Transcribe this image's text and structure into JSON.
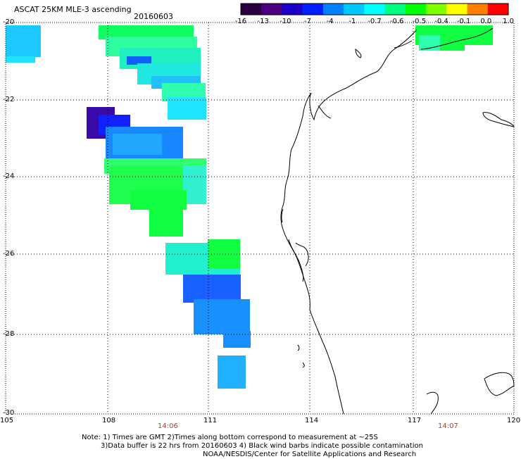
{
  "header": {
    "title": "ASCAT 25KM MLE-3 ascending",
    "date": "20160603"
  },
  "colorbar": {
    "labels": [
      "-16",
      "-13",
      "-10",
      "-7",
      "-4",
      "-1",
      "-0.7",
      "-0.6",
      "-0.5",
      "-0.4",
      "-0.1",
      "0.0",
      "1.0"
    ],
    "colors": [
      "#2b0040",
      "#4b0082",
      "#1a00c8",
      "#0020ff",
      "#0080ff",
      "#00c8ff",
      "#00ffff",
      "#00ff80",
      "#00ff00",
      "#80ff00",
      "#ffff00",
      "#ff8000",
      "#ff0000"
    ]
  },
  "axes": {
    "lat_labels": [
      "-20",
      "-22",
      "-24",
      "-26",
      "-28",
      "-30"
    ],
    "lon_labels": [
      "105",
      "108",
      "111",
      "114",
      "117",
      "120"
    ]
  },
  "times": [
    "14:06",
    "14:07"
  ],
  "notes": {
    "line1": "Note: 1) Times are GMT 2)Times along bottom correspond to measurement at ~25S",
    "line2": "3)Data buffer is 22 hrs from 20160603 4) Black wind barbs indicate possible contamination",
    "credit": "NOAA/NESDIS/Center for Satellite Applications and Research"
  },
  "map_colors": {
    "coast": "#000000",
    "grid": "#000000",
    "swath_green": "#00ff40",
    "swath_cyan": "#00e0ff",
    "swath_blue": "#0070ff",
    "swath_purple": "#4010a0"
  }
}
